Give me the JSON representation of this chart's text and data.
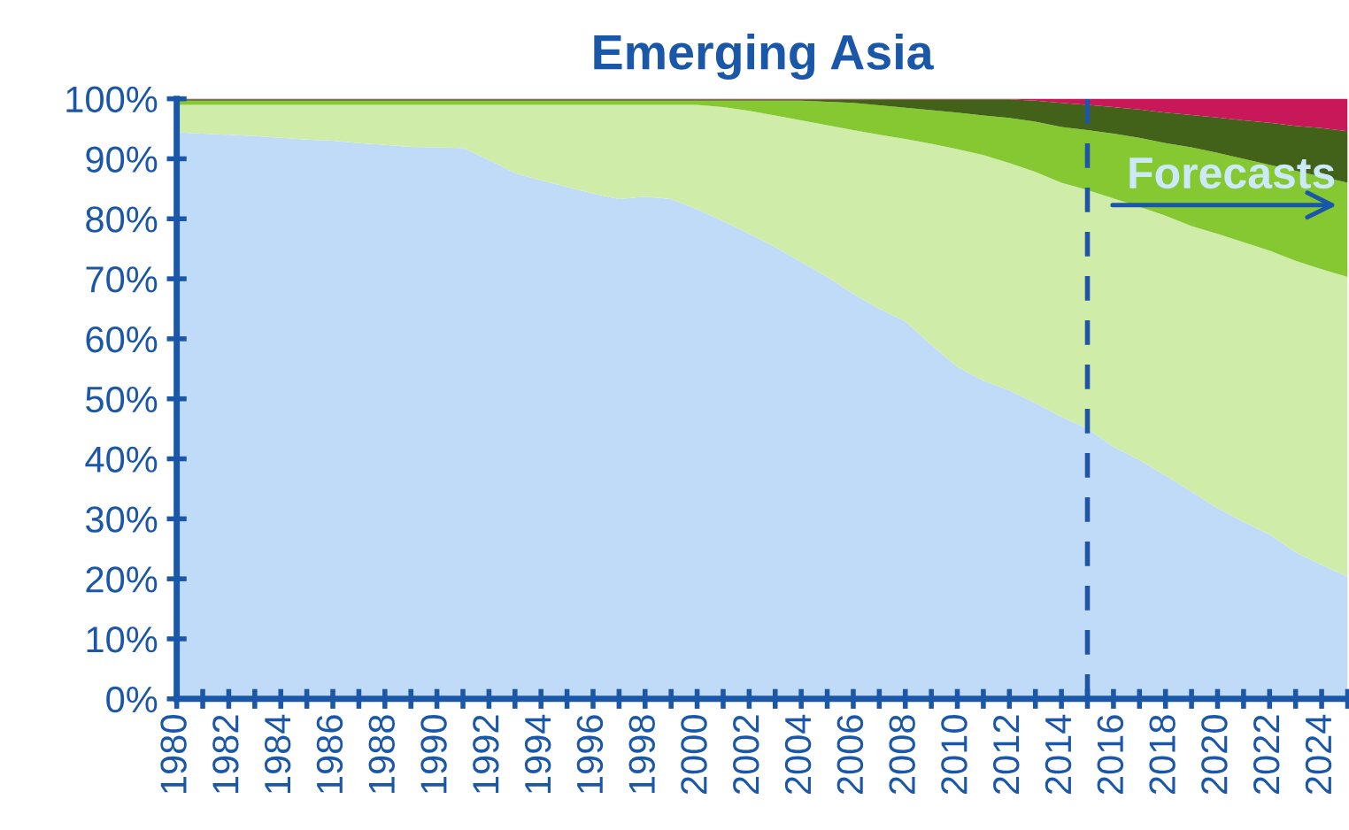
{
  "chart_data": {
    "type": "area",
    "stacked": true,
    "title": "Emerging Asia",
    "x": [
      1980,
      1981,
      1982,
      1983,
      1984,
      1985,
      1986,
      1987,
      1988,
      1989,
      1990,
      1991,
      1992,
      1993,
      1994,
      1995,
      1996,
      1997,
      1998,
      1999,
      2000,
      2001,
      2002,
      2003,
      2004,
      2005,
      2006,
      2007,
      2008,
      2009,
      2010,
      2011,
      2012,
      2013,
      2014,
      2015,
      2016,
      2017,
      2018,
      2019,
      2020,
      2021,
      2022,
      2023,
      2024,
      2025
    ],
    "series": [
      {
        "color": "#c0dbf8",
        "values": [
          94.4,
          94.2,
          94.0,
          93.8,
          93.5,
          93.2,
          93.0,
          92.6,
          92.3,
          92.0,
          91.9,
          91.8,
          89.8,
          87.6,
          86.4,
          85.3,
          84.2,
          83.3,
          83.7,
          83.3,
          81.6,
          79.6,
          77.5,
          75.3,
          72.8,
          70.3,
          67.5,
          65.0,
          62.9,
          59.0,
          55.3,
          53.0,
          51.4,
          49.3,
          47.0,
          45.0,
          42.0,
          39.8,
          37.2,
          34.5,
          31.8,
          29.5,
          27.4,
          24.4,
          22.3,
          20.4
        ]
      },
      {
        "color": "#d0eca9",
        "values": [
          4.6,
          4.8,
          5.0,
          5.2,
          5.5,
          5.8,
          6.0,
          6.4,
          6.7,
          7.0,
          7.1,
          7.2,
          9.2,
          11.4,
          12.6,
          13.7,
          14.8,
          15.7,
          15.3,
          15.7,
          17.4,
          19.0,
          20.5,
          21.9,
          23.6,
          25.3,
          27.3,
          29.0,
          30.4,
          33.5,
          36.3,
          37.6,
          37.9,
          38.5,
          39.0,
          39.8,
          41.4,
          42.2,
          43.3,
          44.3,
          45.7,
          46.6,
          47.3,
          48.6,
          49.3,
          49.9
        ]
      },
      {
        "color": "#86c831",
        "values": [
          0.7,
          0.7,
          0.7,
          0.7,
          0.7,
          0.7,
          0.7,
          0.7,
          0.7,
          0.7,
          0.7,
          0.7,
          0.7,
          0.7,
          0.7,
          0.7,
          0.7,
          0.7,
          0.7,
          0.7,
          0.7,
          1.1,
          1.7,
          2.5,
          3.3,
          3.9,
          4.5,
          4.9,
          5.2,
          5.6,
          6.1,
          6.6,
          7.5,
          8.4,
          9.3,
          10.0,
          10.8,
          11.5,
          12.1,
          13.1,
          13.5,
          13.9,
          14.3,
          15.0,
          15.4,
          15.7
        ]
      },
      {
        "color": "#42621a",
        "values": [
          0.2,
          0.2,
          0.2,
          0.2,
          0.2,
          0.2,
          0.2,
          0.2,
          0.2,
          0.2,
          0.2,
          0.2,
          0.2,
          0.2,
          0.2,
          0.2,
          0.2,
          0.2,
          0.2,
          0.2,
          0.2,
          0.2,
          0.2,
          0.2,
          0.2,
          0.4,
          0.6,
          1.0,
          1.4,
          1.8,
          2.2,
          2.7,
          3.1,
          3.5,
          4.0,
          4.2,
          4.4,
          4.7,
          5.1,
          5.4,
          5.9,
          6.4,
          7.0,
          7.5,
          8.1,
          8.6
        ]
      },
      {
        "color": "#c8185a",
        "values": [
          0.1,
          0.1,
          0.1,
          0.1,
          0.1,
          0.1,
          0.1,
          0.1,
          0.1,
          0.1,
          0.1,
          0.1,
          0.1,
          0.1,
          0.1,
          0.1,
          0.1,
          0.1,
          0.1,
          0.1,
          0.1,
          0.1,
          0.1,
          0.1,
          0.1,
          0.1,
          0.1,
          0.1,
          0.1,
          0.1,
          0.1,
          0.1,
          0.1,
          0.3,
          0.7,
          1.0,
          1.4,
          1.8,
          2.3,
          2.7,
          3.1,
          3.6,
          4.0,
          4.5,
          4.9,
          5.4
        ]
      }
    ],
    "xlim": [
      1980,
      2025
    ],
    "xticks": [
      1980,
      {
        "value": 1981,
        "label": null
      },
      1982,
      {
        "value": 1983,
        "label": null
      },
      1984,
      {
        "value": 1985,
        "label": null
      },
      1986,
      {
        "value": 1987,
        "label": null
      },
      1988,
      {
        "value": 1989,
        "label": null
      },
      1990,
      {
        "value": 1991,
        "label": null
      },
      1992,
      {
        "value": 1993,
        "label": null
      },
      1994,
      {
        "value": 1995,
        "label": null
      },
      1996,
      {
        "value": 1997,
        "label": null
      },
      1998,
      {
        "value": 1999,
        "label": null
      },
      2000,
      {
        "value": 2001,
        "label": null
      },
      2002,
      {
        "value": 2003,
        "label": null
      },
      2004,
      {
        "value": 2005,
        "label": null
      },
      2006,
      {
        "value": 2007,
        "label": null
      },
      2008,
      {
        "value": 2009,
        "label": null
      },
      2010,
      {
        "value": 2011,
        "label": null
      },
      2012,
      {
        "value": 2013,
        "label": null
      },
      2014,
      {
        "value": 2015,
        "label": null
      },
      2016,
      {
        "value": 2017,
        "label": null
      },
      2018,
      {
        "value": 2019,
        "label": null
      },
      2020,
      {
        "value": 2021,
        "label": null
      },
      2022,
      {
        "value": 2023,
        "label": null
      },
      2024,
      {
        "value": 2025,
        "label": null
      }
    ],
    "ylim": [
      0,
      100
    ],
    "yticks": [
      {
        "value": 0,
        "label": "0%"
      },
      {
        "value": 10,
        "label": "10%"
      },
      {
        "value": 20,
        "label": "20%"
      },
      {
        "value": 30,
        "label": "30%"
      },
      {
        "value": 40,
        "label": "40%"
      },
      {
        "value": 50,
        "label": "50%"
      },
      {
        "value": 60,
        "label": "60%"
      },
      {
        "value": 70,
        "label": "70%"
      },
      {
        "value": 80,
        "label": "80%"
      },
      {
        "value": 90,
        "label": "90%"
      },
      {
        "value": 100,
        "label": "100%"
      }
    ],
    "ref_lines": [
      {
        "axis": "x",
        "value": 2015,
        "color": "#1f55a5",
        "line_style": "dashed"
      }
    ],
    "annotations": [
      "Forecasts"
    ],
    "grid": false,
    "legend": false
  }
}
